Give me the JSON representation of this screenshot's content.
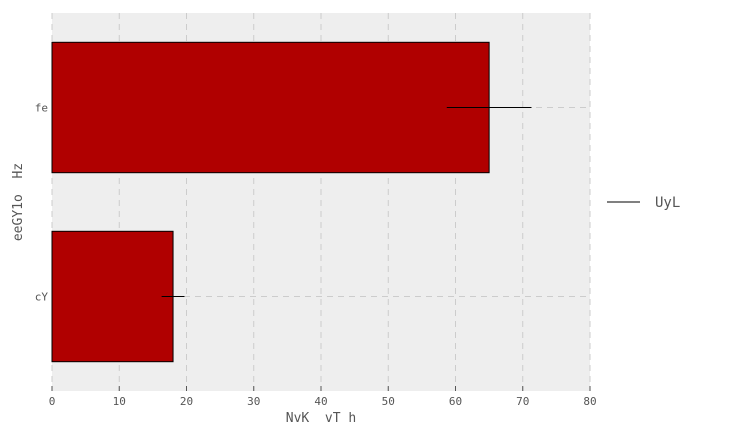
{
  "chart_data": {
    "type": "bar",
    "orientation": "horizontal",
    "categories": [
      "cY",
      "fe"
    ],
    "series": [
      {
        "name": "UyL",
        "values": [
          18,
          65
        ],
        "errors": [
          1.7,
          6.3
        ],
        "color": "#b00000"
      }
    ],
    "xlabel": "NvK  vT h",
    "ylabel": "eeGY1o  Hz",
    "xlim": [
      0,
      80
    ],
    "xticks": [
      0,
      10,
      20,
      30,
      40,
      50,
      60,
      70,
      80
    ],
    "grid": true,
    "legend_position": "right",
    "background": "#eeeeee"
  }
}
